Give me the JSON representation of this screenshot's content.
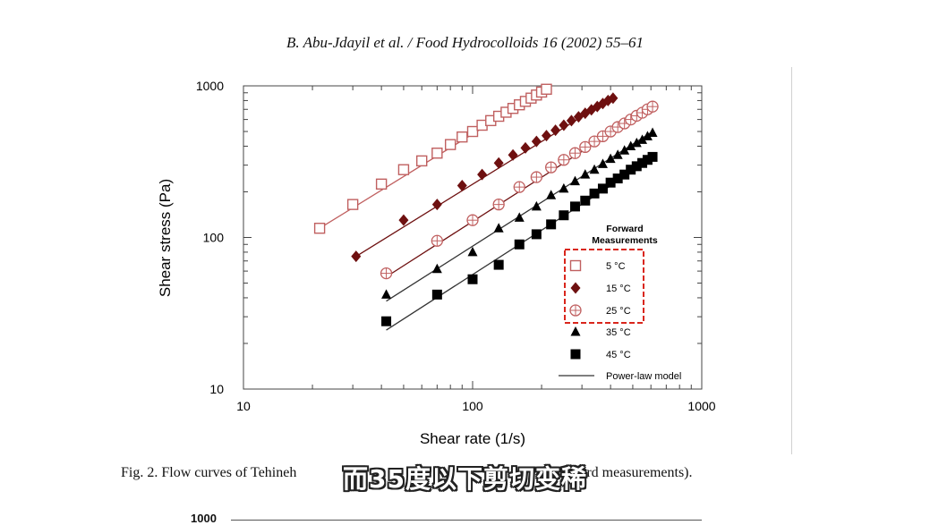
{
  "header": "B. Abu-Jdayil et al. / Food Hydrocolloids 16 (2002) 55–61",
  "caption": "Fig. 2. Flow curves of Tehineh",
  "caption_tail": "rward measurements).",
  "subtitle": "而35度以下剪切变稀",
  "next_chart_tick": "1000",
  "colors": {
    "dark_red": "#6e1010",
    "light_red": "#c06060",
    "black": "#000000",
    "legend_box": "#d9261c"
  },
  "chart_data": {
    "type": "scatter",
    "xscale": "log",
    "yscale": "log",
    "xlim": [
      10,
      1000
    ],
    "ylim": [
      10,
      1000
    ],
    "xlabel": "Shear rate (1/s)",
    "ylabel": "Shear stress (Pa)",
    "x_ticks": [
      "10",
      "100",
      "1000"
    ],
    "y_ticks": [
      "10",
      "100",
      "1000"
    ],
    "grid": false,
    "legend": {
      "placement": "bottom-right",
      "title_line1": "Forward",
      "title_line2": "Measurements",
      "model_label": "Power-law model"
    },
    "series": [
      {
        "name": "5 °C",
        "marker": "square-open",
        "color": "#c06060",
        "x": [
          21.5,
          30,
          40,
          50,
          60,
          70,
          80,
          90,
          100,
          110,
          120,
          130,
          140,
          150,
          160,
          170,
          180,
          190,
          200,
          210
        ],
        "y": [
          115,
          165,
          225,
          280,
          320,
          360,
          410,
          460,
          500,
          550,
          590,
          630,
          670,
          710,
          750,
          790,
          830,
          870,
          910,
          950
        ]
      },
      {
        "name": "15 °C",
        "marker": "diamond",
        "color": "#6e1010",
        "x": [
          31,
          50,
          70,
          90,
          110,
          130,
          150,
          170,
          190,
          210,
          230,
          250,
          270,
          290,
          310,
          330,
          350,
          370,
          390,
          410
        ],
        "y": [
          75,
          130,
          165,
          220,
          260,
          310,
          350,
          390,
          430,
          470,
          510,
          550,
          590,
          625,
          660,
          695,
          730,
          765,
          800,
          830
        ]
      },
      {
        "name": "25 °C",
        "marker": "circle-plus",
        "color": "#c06060",
        "x": [
          42,
          70,
          100,
          130,
          160,
          190,
          220,
          250,
          280,
          310,
          340,
          370,
          400,
          430,
          460,
          490,
          520,
          550,
          580,
          610
        ],
        "y": [
          58,
          95,
          130,
          165,
          215,
          250,
          290,
          325,
          360,
          395,
          430,
          465,
          500,
          535,
          565,
          600,
          635,
          665,
          700,
          730
        ]
      },
      {
        "name": "35 °C",
        "marker": "triangle",
        "color": "#000000",
        "x": [
          42,
          70,
          100,
          130,
          160,
          190,
          220,
          250,
          280,
          310,
          340,
          370,
          400,
          430,
          460,
          490,
          520,
          550,
          580,
          610
        ],
        "y": [
          42,
          62,
          80,
          115,
          135,
          160,
          190,
          210,
          235,
          260,
          280,
          305,
          330,
          350,
          375,
          400,
          420,
          440,
          465,
          490
        ]
      },
      {
        "name": "45 °C",
        "marker": "square",
        "color": "#000000",
        "x": [
          42,
          70,
          100,
          130,
          160,
          190,
          220,
          250,
          280,
          310,
          340,
          370,
          400,
          430,
          460,
          490,
          520,
          550,
          580,
          610
        ],
        "y": [
          28,
          42,
          53,
          66,
          90,
          105,
          122,
          140,
          160,
          175,
          195,
          210,
          230,
          245,
          260,
          280,
          295,
          310,
          325,
          340
        ]
      }
    ],
    "fits": [
      {
        "series": "5 °C",
        "x": [
          21.5,
          210
        ],
        "y": [
          115,
          960
        ],
        "color": "#c06060"
      },
      {
        "series": "15 °C",
        "x": [
          31,
          410
        ],
        "y": [
          75,
          840
        ],
        "color": "#6e1010"
      },
      {
        "series": "25 °C",
        "x": [
          42,
          610
        ],
        "y": [
          55,
          735
        ],
        "color": "#6e1010"
      },
      {
        "series": "35 °C",
        "x": [
          42,
          610
        ],
        "y": [
          38,
          500
        ],
        "color": "#333333"
      },
      {
        "series": "45 °C",
        "x": [
          42,
          610
        ],
        "y": [
          24.5,
          330
        ],
        "color": "#333333"
      }
    ]
  }
}
